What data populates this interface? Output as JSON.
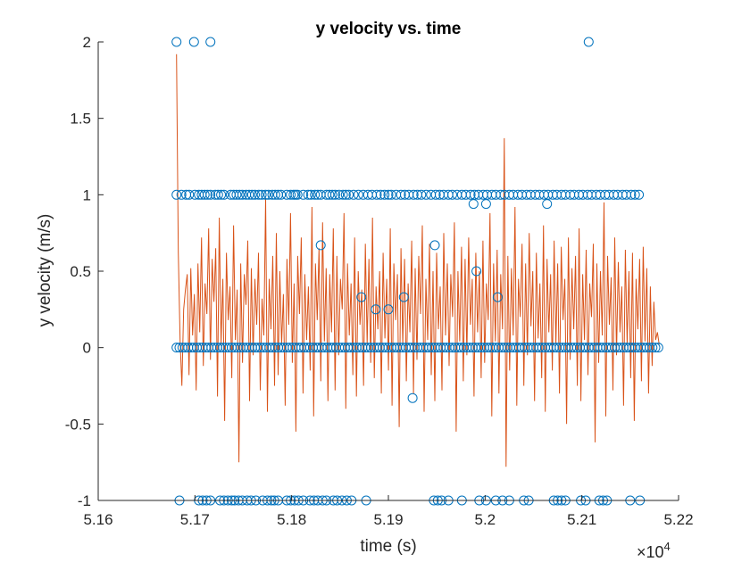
{
  "chart_data": {
    "type": "scatter",
    "title": "y velocity vs. time",
    "xlabel": "time (s)",
    "ylabel": "y velocity (m/s)",
    "x_exponent_label": "×10",
    "x_exponent_power": "4",
    "xlim": [
      5.16,
      5.22
    ],
    "ylim": [
      -1,
      2
    ],
    "xticks": [
      5.16,
      5.17,
      5.18,
      5.19,
      5.2,
      5.21,
      5.22
    ],
    "xtick_labels": [
      "5.16",
      "5.17",
      "5.18",
      "5.19",
      "5.2",
      "5.21",
      "5.22"
    ],
    "yticks": [
      -1,
      -0.5,
      0,
      0.5,
      1,
      1.5,
      2
    ],
    "ytick_labels": [
      "-1",
      "-0.5",
      "0",
      "0.5",
      "1",
      "1.5",
      "2"
    ],
    "grid": false,
    "colors": {
      "markers": "#0072BD",
      "line": "#D95319",
      "axes": "#262626"
    },
    "series": [
      {
        "type": "scatter",
        "marker": "circle-open",
        "points": [
          {
            "x": 5.1681,
            "y": 2
          },
          {
            "x": 5.1699,
            "y": 2
          },
          {
            "x": 5.1716,
            "y": 2
          },
          {
            "x": 5.2107,
            "y": 2
          },
          {
            "x": 5.1681,
            "y": 1
          },
          {
            "x": 5.1686,
            "y": 1
          },
          {
            "x": 5.1691,
            "y": 1
          },
          {
            "x": 5.1694,
            "y": 1
          },
          {
            "x": 5.17,
            "y": 1
          },
          {
            "x": 5.1704,
            "y": 1
          },
          {
            "x": 5.1707,
            "y": 1
          },
          {
            "x": 5.171,
            "y": 1
          },
          {
            "x": 5.1713,
            "y": 1
          },
          {
            "x": 5.1716,
            "y": 1
          },
          {
            "x": 5.1721,
            "y": 1
          },
          {
            "x": 5.1724,
            "y": 1
          },
          {
            "x": 5.1727,
            "y": 1
          },
          {
            "x": 5.173,
            "y": 1
          },
          {
            "x": 5.1737,
            "y": 1
          },
          {
            "x": 5.174,
            "y": 1
          },
          {
            "x": 5.1743,
            "y": 1
          },
          {
            "x": 5.1746,
            "y": 1
          },
          {
            "x": 5.1749,
            "y": 1
          },
          {
            "x": 5.1753,
            "y": 1
          },
          {
            "x": 5.1756,
            "y": 1
          },
          {
            "x": 5.1759,
            "y": 1
          },
          {
            "x": 5.1762,
            "y": 1
          },
          {
            "x": 5.1766,
            "y": 1
          },
          {
            "x": 5.1769,
            "y": 1
          },
          {
            "x": 5.1773,
            "y": 1
          },
          {
            "x": 5.1776,
            "y": 1
          },
          {
            "x": 5.178,
            "y": 1
          },
          {
            "x": 5.1783,
            "y": 1
          },
          {
            "x": 5.1786,
            "y": 1
          },
          {
            "x": 5.1789,
            "y": 1
          },
          {
            "x": 5.1795,
            "y": 1
          },
          {
            "x": 5.1799,
            "y": 1
          },
          {
            "x": 5.1802,
            "y": 1
          },
          {
            "x": 5.1804,
            "y": 1
          },
          {
            "x": 5.1806,
            "y": 1
          },
          {
            "x": 5.1812,
            "y": 1
          },
          {
            "x": 5.1817,
            "y": 1
          },
          {
            "x": 5.182,
            "y": 1
          },
          {
            "x": 5.1824,
            "y": 1
          },
          {
            "x": 5.1827,
            "y": 1
          },
          {
            "x": 5.183,
            "y": 1
          },
          {
            "x": 5.1836,
            "y": 1
          },
          {
            "x": 5.1839,
            "y": 1
          },
          {
            "x": 5.1842,
            "y": 1
          },
          {
            "x": 5.1845,
            "y": 1
          },
          {
            "x": 5.1849,
            "y": 1
          },
          {
            "x": 5.1853,
            "y": 1
          },
          {
            "x": 5.1856,
            "y": 1
          },
          {
            "x": 5.1859,
            "y": 1
          },
          {
            "x": 5.1864,
            "y": 1
          },
          {
            "x": 5.1869,
            "y": 1
          },
          {
            "x": 5.1874,
            "y": 1
          },
          {
            "x": 5.1879,
            "y": 1
          },
          {
            "x": 5.1883,
            "y": 1
          },
          {
            "x": 5.1888,
            "y": 1
          },
          {
            "x": 5.1892,
            "y": 1
          },
          {
            "x": 5.1896,
            "y": 1
          },
          {
            "x": 5.19,
            "y": 1
          },
          {
            "x": 5.1903,
            "y": 1
          },
          {
            "x": 5.1908,
            "y": 1
          },
          {
            "x": 5.1913,
            "y": 1
          },
          {
            "x": 5.1917,
            "y": 1
          },
          {
            "x": 5.1921,
            "y": 1
          },
          {
            "x": 5.1926,
            "y": 1
          },
          {
            "x": 5.193,
            "y": 1
          },
          {
            "x": 5.1934,
            "y": 1
          },
          {
            "x": 5.1939,
            "y": 1
          },
          {
            "x": 5.1944,
            "y": 1
          },
          {
            "x": 5.1949,
            "y": 1
          },
          {
            "x": 5.1953,
            "y": 1
          },
          {
            "x": 5.1957,
            "y": 1
          },
          {
            "x": 5.1962,
            "y": 1
          },
          {
            "x": 5.1966,
            "y": 1
          },
          {
            "x": 5.1971,
            "y": 1
          },
          {
            "x": 5.1976,
            "y": 1
          },
          {
            "x": 5.198,
            "y": 1
          },
          {
            "x": 5.1985,
            "y": 1
          },
          {
            "x": 5.1989,
            "y": 1
          },
          {
            "x": 5.1993,
            "y": 1
          },
          {
            "x": 5.1998,
            "y": 1
          },
          {
            "x": 5.2002,
            "y": 1
          },
          {
            "x": 5.2007,
            "y": 1
          },
          {
            "x": 5.2011,
            "y": 1
          },
          {
            "x": 5.2016,
            "y": 1
          },
          {
            "x": 5.202,
            "y": 1
          },
          {
            "x": 5.2025,
            "y": 1
          },
          {
            "x": 5.2029,
            "y": 1
          },
          {
            "x": 5.2034,
            "y": 1
          },
          {
            "x": 5.2038,
            "y": 1
          },
          {
            "x": 5.2043,
            "y": 1
          },
          {
            "x": 5.2047,
            "y": 1
          },
          {
            "x": 5.2052,
            "y": 1
          },
          {
            "x": 5.2056,
            "y": 1
          },
          {
            "x": 5.2061,
            "y": 1
          },
          {
            "x": 5.2065,
            "y": 1
          },
          {
            "x": 5.207,
            "y": 1
          },
          {
            "x": 5.2074,
            "y": 1
          },
          {
            "x": 5.2079,
            "y": 1
          },
          {
            "x": 5.2083,
            "y": 1
          },
          {
            "x": 5.2088,
            "y": 1
          },
          {
            "x": 5.2092,
            "y": 1
          },
          {
            "x": 5.2097,
            "y": 1
          },
          {
            "x": 5.2101,
            "y": 1
          },
          {
            "x": 5.2106,
            "y": 1
          },
          {
            "x": 5.211,
            "y": 1
          },
          {
            "x": 5.2115,
            "y": 1
          },
          {
            "x": 5.2119,
            "y": 1
          },
          {
            "x": 5.2124,
            "y": 1
          },
          {
            "x": 5.2128,
            "y": 1
          },
          {
            "x": 5.2133,
            "y": 1
          },
          {
            "x": 5.2137,
            "y": 1
          },
          {
            "x": 5.2142,
            "y": 1
          },
          {
            "x": 5.2146,
            "y": 1
          },
          {
            "x": 5.2151,
            "y": 1
          },
          {
            "x": 5.2155,
            "y": 1
          },
          {
            "x": 5.2159,
            "y": 1
          },
          {
            "x": 5.1988,
            "y": 0.94
          },
          {
            "x": 5.2001,
            "y": 0.94
          },
          {
            "x": 5.2064,
            "y": 0.94
          },
          {
            "x": 5.183,
            "y": 0.67
          },
          {
            "x": 5.1948,
            "y": 0.67
          },
          {
            "x": 5.1991,
            "y": 0.5
          },
          {
            "x": 5.1872,
            "y": 0.33
          },
          {
            "x": 5.1916,
            "y": 0.33
          },
          {
            "x": 5.2013,
            "y": 0.33
          },
          {
            "x": 5.1887,
            "y": 0.25
          },
          {
            "x": 5.19,
            "y": 0.25
          },
          {
            "x": 5.1925,
            "y": -0.33
          },
          {
            "x": 5.1684,
            "y": -1
          },
          {
            "x": 5.1704,
            "y": -1
          },
          {
            "x": 5.1708,
            "y": -1
          },
          {
            "x": 5.1712,
            "y": -1
          },
          {
            "x": 5.1716,
            "y": -1
          },
          {
            "x": 5.1726,
            "y": -1
          },
          {
            "x": 5.173,
            "y": -1
          },
          {
            "x": 5.1734,
            "y": -1
          },
          {
            "x": 5.1738,
            "y": -1
          },
          {
            "x": 5.1741,
            "y": -1
          },
          {
            "x": 5.1745,
            "y": -1
          },
          {
            "x": 5.1749,
            "y": -1
          },
          {
            "x": 5.1754,
            "y": -1
          },
          {
            "x": 5.1758,
            "y": -1
          },
          {
            "x": 5.1763,
            "y": -1
          },
          {
            "x": 5.177,
            "y": -1
          },
          {
            "x": 5.1775,
            "y": -1
          },
          {
            "x": 5.1779,
            "y": -1
          },
          {
            "x": 5.1782,
            "y": -1
          },
          {
            "x": 5.1786,
            "y": -1
          },
          {
            "x": 5.1795,
            "y": -1
          },
          {
            "x": 5.1799,
            "y": -1
          },
          {
            "x": 5.1803,
            "y": -1
          },
          {
            "x": 5.1807,
            "y": -1
          },
          {
            "x": 5.1812,
            "y": -1
          },
          {
            "x": 5.1819,
            "y": -1
          },
          {
            "x": 5.1823,
            "y": -1
          },
          {
            "x": 5.1827,
            "y": -1
          },
          {
            "x": 5.1832,
            "y": -1
          },
          {
            "x": 5.1836,
            "y": -1
          },
          {
            "x": 5.1843,
            "y": -1
          },
          {
            "x": 5.1847,
            "y": -1
          },
          {
            "x": 5.1852,
            "y": -1
          },
          {
            "x": 5.1857,
            "y": -1
          },
          {
            "x": 5.1862,
            "y": -1
          },
          {
            "x": 5.1877,
            "y": -1
          },
          {
            "x": 5.1947,
            "y": -1
          },
          {
            "x": 5.1951,
            "y": -1
          },
          {
            "x": 5.1955,
            "y": -1
          },
          {
            "x": 5.1962,
            "y": -1
          },
          {
            "x": 5.1976,
            "y": -1
          },
          {
            "x": 5.1994,
            "y": -1
          },
          {
            "x": 5.2001,
            "y": -1
          },
          {
            "x": 5.2011,
            "y": -1
          },
          {
            "x": 5.2018,
            "y": -1
          },
          {
            "x": 5.2025,
            "y": -1
          },
          {
            "x": 5.204,
            "y": -1
          },
          {
            "x": 5.2045,
            "y": -1
          },
          {
            "x": 5.2071,
            "y": -1
          },
          {
            "x": 5.2075,
            "y": -1
          },
          {
            "x": 5.2079,
            "y": -1
          },
          {
            "x": 5.2083,
            "y": -1
          },
          {
            "x": 5.2099,
            "y": -1
          },
          {
            "x": 5.2104,
            "y": -1
          },
          {
            "x": 5.2118,
            "y": -1
          },
          {
            "x": 5.2122,
            "y": -1
          },
          {
            "x": 5.2126,
            "y": -1
          },
          {
            "x": 5.215,
            "y": -1
          },
          {
            "x": 5.216,
            "y": -1
          }
        ],
        "zero_band": {
          "x_start": 5.1681,
          "x_end": 5.218,
          "step": 0.0003,
          "y": 0
        }
      },
      {
        "type": "line",
        "x_start": 5.1681,
        "x_end": 5.218,
        "values": [
          1.92,
          0.62,
          0.05,
          -0.25,
          0.25,
          0.38,
          0.48,
          -0.18,
          0.52,
          0.08,
          0.35,
          -0.28,
          0.55,
          0.1,
          0.72,
          -0.12,
          0.42,
          0.22,
          0.78,
          -0.08,
          0.58,
          0.3,
          0.65,
          -0.32,
          0.85,
          0.02,
          0.45,
          -0.48,
          0.62,
          0.18,
          0.4,
          -0.2,
          0.8,
          0.05,
          0.38,
          -0.75,
          0.55,
          -0.1,
          0.48,
          0.28,
          0.7,
          -0.35,
          0.52,
          -0.05,
          0.45,
          0.15,
          0.62,
          -0.28,
          0.32,
          0.08,
          0.98,
          -0.42,
          0.45,
          0.12,
          0.6,
          -0.25,
          0.75,
          -0.18,
          0.5,
          0.02,
          0.35,
          -0.38,
          0.58,
          0.15,
          0.88,
          -0.1,
          0.42,
          -0.55,
          0.6,
          0.22,
          0.72,
          -0.3,
          0.48,
          0.05,
          0.4,
          -0.15,
          0.92,
          -0.45,
          0.55,
          0.18,
          0.65,
          -0.22,
          0.82,
          0.04,
          0.52,
          -0.35,
          0.48,
          0.1,
          0.78,
          -0.28,
          0.6,
          -0.05,
          0.45,
          0.25,
          0.88,
          -0.4,
          0.55,
          0.08,
          0.42,
          -0.18,
          0.72,
          -0.32,
          0.5,
          0.15,
          0.38,
          -0.25,
          0.68,
          0.02,
          0.58,
          -0.1,
          0.85,
          -0.2,
          0.4,
          0.12,
          0.5,
          -0.3,
          0.62,
          0.06,
          0.45,
          -0.15,
          0.78,
          -0.38,
          0.55,
          0.18,
          0.48,
          -0.52,
          0.65,
          0.02,
          0.58,
          -0.22,
          0.42,
          0.1,
          0.7,
          -0.3,
          0.52,
          -0.08,
          0.6,
          0.22,
          0.8,
          -0.42,
          0.45,
          0.05,
          0.68,
          -0.18,
          0.5,
          -0.35,
          0.62,
          0.12,
          0.4,
          -0.28,
          0.75,
          0.08,
          0.55,
          -0.12,
          0.48,
          0.2,
          0.82,
          -0.55,
          0.5,
          0.04,
          0.66,
          -0.22,
          0.58,
          -0.05,
          0.72,
          0.15,
          0.45,
          -0.32,
          0.62,
          0.1,
          0.5,
          -0.2,
          0.7,
          -0.1,
          0.42,
          0.18,
          0.88,
          -0.45,
          0.55,
          0.04,
          0.64,
          -0.3,
          0.48,
          0.12,
          1.37,
          -0.78,
          0.6,
          -0.15,
          0.52,
          0.08,
          0.92,
          -0.38,
          0.45,
          0.2,
          0.68,
          -0.25,
          0.55,
          -0.05,
          0.75,
          0.14,
          0.5,
          -0.35,
          0.62,
          0.06,
          0.42,
          -0.2,
          0.8,
          -0.42,
          0.58,
          0.1,
          0.48,
          -0.15,
          0.7,
          0.02,
          0.55,
          -0.3,
          0.66,
          0.18,
          0.45,
          -0.5,
          0.72,
          -0.08,
          0.52,
          0.12,
          0.6,
          -0.25,
          0.78,
          -0.35,
          0.48,
          0.05,
          0.64,
          -0.18,
          0.42,
          0.2,
          0.68,
          -0.62,
          0.55,
          -0.1,
          0.5,
          0.08,
          0.95,
          -0.45,
          0.6,
          0.15,
          0.46,
          -0.28,
          0.72,
          -0.05,
          0.56,
          0.1,
          0.4,
          -0.38,
          0.64,
          0.02,
          0.5,
          -0.2,
          0.62,
          -0.48,
          0.45,
          0.12,
          0.58,
          -0.22,
          0.66,
          0.04,
          0.52,
          -0.3,
          0.4,
          -0.12,
          0.3,
          0.05,
          0.1,
          0.02
        ]
      }
    ]
  }
}
